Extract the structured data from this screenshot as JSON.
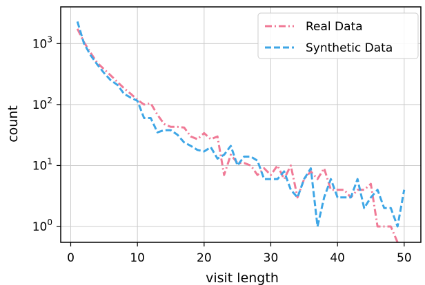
{
  "chart_data": {
    "type": "line",
    "title": "",
    "xlabel": "visit length",
    "ylabel": "count",
    "xlim": [
      -1.5,
      52.5
    ],
    "ylim": [
      0.55,
      4000
    ],
    "xscale": "linear",
    "yscale": "log",
    "grid": true,
    "legend_position": "top-right",
    "x_ticks": [
      0,
      10,
      20,
      30,
      40,
      50
    ],
    "x_tick_labels": [
      "0",
      "10",
      "20",
      "30",
      "40",
      "50"
    ],
    "y_ticks": [
      1,
      10,
      100,
      1000
    ],
    "y_tick_labels": [
      "10",
      "10",
      "10",
      "10"
    ],
    "y_tick_exponents": [
      "0",
      "1",
      "2",
      "3"
    ],
    "series": [
      {
        "name": "Real Data",
        "color": "#f07a96",
        "dash": "dashdot",
        "x": [
          1,
          2,
          3,
          4,
          5,
          6,
          7,
          8,
          9,
          10,
          11,
          12,
          13,
          14,
          15,
          16,
          17,
          18,
          19,
          20,
          21,
          22,
          23,
          24,
          25,
          26,
          27,
          28,
          29,
          30,
          31,
          32,
          33,
          34,
          35,
          36,
          37,
          38,
          39,
          40,
          41,
          42,
          43,
          44,
          45,
          46,
          47,
          48,
          49
        ],
        "y": [
          1750,
          1050,
          700,
          480,
          380,
          300,
          235,
          185,
          150,
          120,
          100,
          105,
          68,
          48,
          43,
          43,
          42,
          30,
          27,
          34,
          27,
          30,
          7,
          15,
          11,
          11,
          10,
          7,
          9,
          7,
          10,
          6,
          10,
          3,
          6,
          8,
          6,
          9,
          4,
          4,
          4,
          3,
          4,
          4,
          5,
          1,
          1,
          1,
          0.55
        ]
      },
      {
        "name": "Synthetic Data",
        "color": "#3ea6e6",
        "dash": "dashed",
        "x": [
          1,
          2,
          3,
          4,
          5,
          6,
          7,
          8,
          9,
          10,
          11,
          12,
          13,
          14,
          15,
          16,
          17,
          18,
          19,
          20,
          21,
          22,
          23,
          24,
          25,
          26,
          27,
          28,
          29,
          30,
          31,
          32,
          33,
          34,
          35,
          36,
          37,
          38,
          39,
          40,
          41,
          42,
          43,
          44,
          45,
          46,
          47,
          48,
          49,
          50
        ],
        "y": [
          2300,
          1000,
          640,
          450,
          330,
          250,
          210,
          150,
          130,
          115,
          60,
          60,
          35,
          38,
          38,
          32,
          24,
          21,
          18,
          17,
          20,
          13,
          15,
          21,
          10,
          14,
          14,
          12,
          6,
          6,
          6,
          8,
          4,
          3,
          6,
          9,
          1,
          3,
          6,
          3,
          3,
          3,
          6,
          2,
          3,
          4,
          2,
          2,
          1,
          4
        ]
      }
    ]
  }
}
